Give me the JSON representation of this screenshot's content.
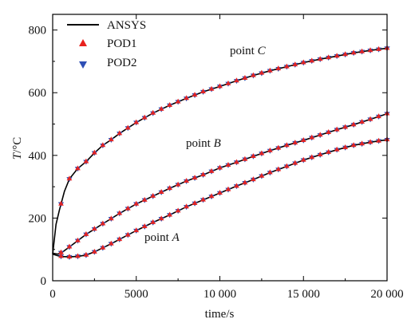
{
  "chart_data": {
    "type": "line",
    "xlabel": "time/s",
    "ylabel_var": "T",
    "ylabel_unit": "/°C",
    "xlim": [
      0,
      20000
    ],
    "ylim": [
      0,
      850
    ],
    "x_ticks": [
      0,
      5000,
      10000,
      15000,
      20000
    ],
    "x_tick_labels": [
      "0",
      "5000",
      "10 000",
      "15 000",
      "20 000"
    ],
    "y_ticks": [
      0,
      200,
      400,
      600,
      800
    ],
    "y_tick_labels": [
      "0",
      "200",
      "400",
      "600",
      "800"
    ],
    "grid": false,
    "legend_position": "top-left",
    "legend": [
      {
        "name": "ANSYS",
        "marker": "line",
        "color": "#000000"
      },
      {
        "name": "POD1",
        "marker": "triangle-up",
        "color": "#e8211d"
      },
      {
        "name": "POD2",
        "marker": "triangle-down",
        "color": "#2e4fb5"
      }
    ],
    "annotations": [
      {
        "prefix": "point ",
        "letter": "C"
      },
      {
        "prefix": "point ",
        "letter": "B"
      },
      {
        "prefix": "point ",
        "letter": "A"
      }
    ],
    "curves": [
      {
        "id": "C",
        "x": [
          0,
          200,
          400,
          700,
          1000,
          1500,
          2000,
          2500,
          3000,
          3500,
          4000,
          5000,
          6000,
          7000,
          8000,
          9000,
          10000,
          11000,
          12000,
          13000,
          14000,
          15000,
          16000,
          17000,
          18000,
          19000,
          20000
        ],
        "y": [
          85,
          180,
          225,
          285,
          325,
          358,
          380,
          408,
          432,
          450,
          470,
          505,
          535,
          560,
          582,
          603,
          620,
          638,
          655,
          670,
          683,
          696,
          707,
          717,
          727,
          735,
          742
        ]
      },
      {
        "id": "B",
        "x": [
          0,
          300,
          600,
          1000,
          1500,
          2000,
          2500,
          3000,
          3500,
          4000,
          5000,
          6000,
          7000,
          8000,
          9000,
          10000,
          11000,
          12000,
          13000,
          14000,
          15000,
          16000,
          17000,
          18000,
          19000,
          20000
        ],
        "y": [
          88,
          85,
          92,
          108,
          128,
          148,
          165,
          182,
          198,
          215,
          245,
          270,
          295,
          318,
          338,
          360,
          378,
          397,
          415,
          432,
          448,
          465,
          482,
          498,
          515,
          533
        ]
      },
      {
        "id": "A",
        "x": [
          0,
          300,
          600,
          1000,
          1500,
          2000,
          2500,
          3000,
          3500,
          4000,
          5000,
          6000,
          7000,
          8000,
          9000,
          10000,
          11000,
          12000,
          13000,
          14000,
          15000,
          16000,
          17000,
          18000,
          19000,
          20000
        ],
        "y": [
          85,
          80,
          77,
          76,
          78,
          82,
          92,
          105,
          118,
          132,
          160,
          186,
          210,
          236,
          258,
          280,
          302,
          323,
          345,
          365,
          385,
          402,
          418,
          432,
          442,
          450
        ]
      }
    ],
    "marker_step_s": 500
  }
}
